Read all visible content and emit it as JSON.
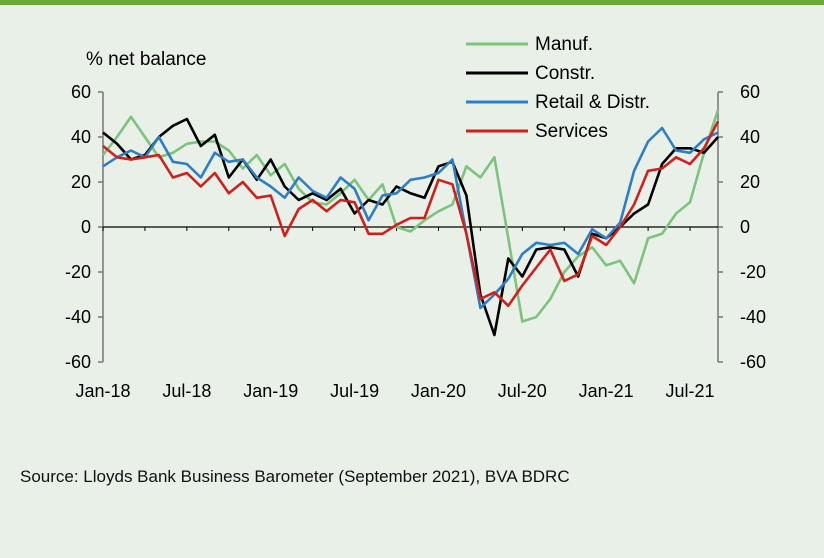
{
  "source_text": "Source: Lloyds Bank Business Barometer (September 2021), BVA BDRC",
  "chart_data": {
    "type": "line",
    "ylabel": "% net balance",
    "ylim": [
      -60,
      60
    ],
    "yticks": [
      -60,
      -40,
      -20,
      0,
      20,
      40,
      60
    ],
    "secondary_y_axis": true,
    "x_tick_labels": [
      "Jan-18",
      "Jul-18",
      "Jan-19",
      "Jul-19",
      "Jan-20",
      "Jul-20",
      "Jan-21",
      "Jul-21"
    ],
    "x_tick_index": [
      0,
      6,
      12,
      18,
      24,
      30,
      36,
      42
    ],
    "n_points": 45,
    "legend_position": "top-right",
    "series": [
      {
        "name": "Manuf.",
        "color": "#7dc37d",
        "values": [
          32,
          40,
          49,
          40,
          31,
          33,
          37,
          38,
          38,
          34,
          26,
          32,
          23,
          28,
          17,
          11,
          10,
          15,
          21,
          12,
          19,
          0,
          -2,
          3,
          7,
          10,
          27,
          22,
          31,
          -5,
          -42,
          -40,
          -32,
          -20,
          -13,
          -9,
          -17,
          -15,
          -25,
          -5,
          -3,
          6,
          11,
          33,
          52
        ]
      },
      {
        "name": "Constr.",
        "color": "#000000",
        "values": [
          42,
          37,
          30,
          32,
          40,
          45,
          48,
          36,
          41,
          22,
          30,
          21,
          30,
          18,
          12,
          15,
          12,
          17,
          6,
          12,
          10,
          18,
          15,
          13,
          27,
          29,
          14,
          -30,
          -48,
          -14,
          -22,
          -10,
          -9,
          -10,
          -22,
          -3,
          -5,
          0,
          6,
          10,
          28,
          35,
          35,
          33,
          40
        ]
      },
      {
        "name": "Retail & Distr.",
        "color": "#2f7ec2",
        "values": [
          27,
          31,
          34,
          31,
          40,
          29,
          28,
          22,
          33,
          29,
          30,
          22,
          18,
          13,
          22,
          16,
          13,
          22,
          17,
          3,
          14,
          15,
          21,
          22,
          24,
          30,
          -3,
          -36,
          -30,
          -23,
          -12,
          -7,
          -8,
          -7,
          -12,
          -1,
          -5,
          2,
          25,
          38,
          44,
          34,
          33,
          39,
          42
        ]
      },
      {
        "name": "Services",
        "color": "#d0201c",
        "values": [
          36,
          31,
          30,
          31,
          32,
          22,
          24,
          18,
          24,
          15,
          20,
          13,
          14,
          -4,
          8,
          12,
          7,
          12,
          11,
          -3,
          -3,
          1,
          4,
          4,
          21,
          19,
          -3,
          -32,
          -29,
          -35,
          -26,
          -18,
          -10,
          -24,
          -21,
          -4,
          -8,
          0,
          10,
          25,
          26,
          31,
          28,
          35,
          47
        ]
      }
    ]
  }
}
